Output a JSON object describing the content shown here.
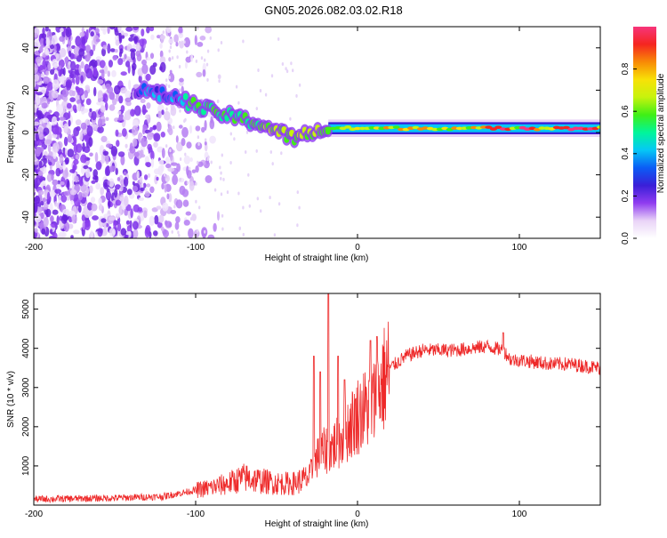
{
  "title": "GN05.2026.082.03.02.R18",
  "chart_data": [
    {
      "type": "heatmap",
      "name": "spectrogram",
      "xlabel": "Height of straight line (km)",
      "ylabel": "Frequency (Hz)",
      "xlim": [
        -200,
        150
      ],
      "ylim": [
        -50,
        50
      ],
      "xticks": [
        -200,
        -100,
        0,
        100
      ],
      "yticks": [
        -40,
        -20,
        0,
        20,
        40
      ],
      "colorbar": {
        "label": "Normalized spectral amplitude",
        "range": [
          0,
          1
        ],
        "ticks": [
          "0.0",
          "0.2",
          "0.4",
          "0.6",
          "0.8"
        ],
        "colors": [
          "#ffffff",
          "#e9d4f7",
          "#8f3cf0",
          "#3a1fd8",
          "#0b5cf5",
          "#05c8f5",
          "#00f59a",
          "#3fef16",
          "#c7f30d",
          "#f8e107",
          "#f88a06",
          "#f52520",
          "#f7357b"
        ]
      },
      "signal_track": {
        "description_points_km_hz": [
          [
            -135,
            20
          ],
          [
            -110,
            16
          ],
          [
            -95,
            11
          ],
          [
            -75,
            7
          ],
          [
            -60,
            4
          ],
          [
            -50,
            1
          ],
          [
            -45,
            -1
          ],
          [
            -38,
            -3
          ],
          [
            -30,
            0
          ],
          [
            -20,
            1
          ],
          [
            -10,
            2
          ],
          [
            0,
            3
          ],
          [
            50,
            2
          ],
          [
            100,
            2
          ],
          [
            150,
            2
          ]
        ]
      }
    },
    {
      "type": "line",
      "name": "snr",
      "xlabel": "Height of straight line (km)",
      "ylabel": "SNR (10 * v/v)",
      "xlim": [
        -200,
        150
      ],
      "ylim": [
        0,
        5400
      ],
      "xticks": [
        -200,
        -100,
        0,
        100
      ],
      "yticks": [
        1000,
        2000,
        3000,
        4000,
        5000
      ],
      "color": "#ee2a2a",
      "envelope": {
        "x": [
          -200,
          -150,
          -120,
          -110,
          -100,
          -90,
          -80,
          -70,
          -60,
          -50,
          -40,
          -30,
          -25,
          -20,
          -15,
          -10,
          -5,
          0,
          5,
          10,
          15,
          20,
          30,
          40,
          50,
          60,
          70,
          80,
          90,
          95,
          100,
          110,
          120,
          130,
          140,
          150
        ],
        "y": [
          150,
          180,
          220,
          300,
          380,
          450,
          550,
          700,
          620,
          560,
          550,
          700,
          1200,
          1400,
          1500,
          1700,
          2000,
          2300,
          2450,
          2600,
          3100,
          3500,
          3800,
          3950,
          3950,
          3950,
          4000,
          4050,
          3950,
          3700,
          3700,
          3650,
          3600,
          3600,
          3550,
          3500
        ]
      },
      "spikes": [
        {
          "x": -27,
          "y": 3800
        },
        {
          "x": -23,
          "y": 3400
        },
        {
          "x": -18,
          "y": 5400
        },
        {
          "x": -12,
          "y": 3800
        },
        {
          "x": -8,
          "y": 3200
        },
        {
          "x": 8,
          "y": 4200
        },
        {
          "x": 12,
          "y": 4300
        },
        {
          "x": 90,
          "y": 4400
        }
      ]
    }
  ]
}
